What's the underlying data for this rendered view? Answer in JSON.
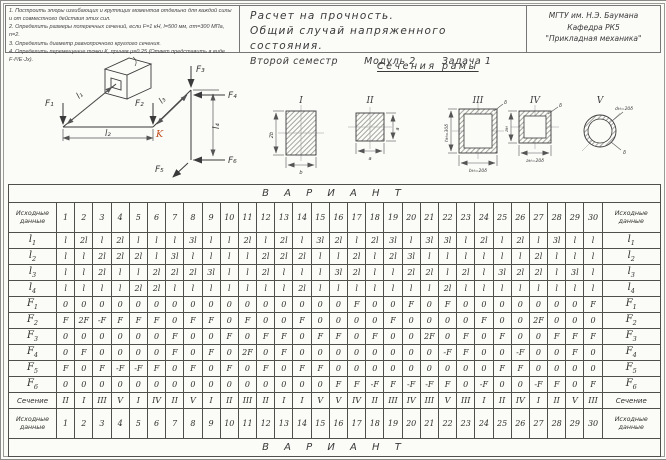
{
  "colors": {
    "paper": "#fbfbf8",
    "line": "#4f4f4d",
    "k_accent": "#c14a1a"
  },
  "header": {
    "instructions": [
      "1. Построить эпюры изгибающих и крутящих моментов отдельно для каждой силы и от совместного действия этих сил.",
      "2. Определить размеры поперечных сечений, если F=1 кН, l=500 мм, σт=300 МПа, n=2.",
      "3. Определить диаметр равнопрочного круглого сечения.",
      "4. Определить перемещение точки К, приняв μ=0.25 (Ответ представить в виде F·l³/E·Jx)."
    ],
    "title_line1": "Расчет на прочность.",
    "title_line2": "Общий случай напряженного состояния.",
    "semester": "Второй семестр",
    "module": "Модуль 2",
    "task": "Задача 1",
    "org_line1": "МГТУ им. Н.Э. Баумана",
    "org_line2": "Кафедра РК5",
    "org_line3": "\"Прикладная механика\""
  },
  "figure": {
    "sections_title": "Сечения рамы",
    "point_label": "K",
    "labels": {
      "f1": "F₁",
      "f2": "F₂",
      "f3": "F₃",
      "f4": "F₄",
      "f5": "F₅",
      "f6": "F₆",
      "l1": "l₁",
      "l2": "l₂",
      "l3": "l₃",
      "l4": "l₄"
    },
    "sections": [
      {
        "num": "I",
        "dim_side": "2b",
        "dim_bottom": "b"
      },
      {
        "num": "II",
        "dim_side": "a",
        "dim_bottom": "a"
      },
      {
        "num": "III",
        "dim_side": "hн=30δ",
        "dim_bottom": "bн=20δ",
        "wall": "δ"
      },
      {
        "num": "IV",
        "dim_side": "aн",
        "dim_bottom": "aн=20δ",
        "wall": "δ"
      },
      {
        "num": "V",
        "dim_top": "dн=20δ",
        "wall": "δ"
      }
    ]
  },
  "table": {
    "variant_header": "В А Р И А Н Т",
    "corner_label": "Исходные данные",
    "columns": [
      "1",
      "2",
      "3",
      "4",
      "5",
      "6",
      "7",
      "8",
      "9",
      "10",
      "11",
      "12",
      "13",
      "14",
      "15",
      "16",
      "17",
      "18",
      "19",
      "20",
      "21",
      "22",
      "23",
      "24",
      "25",
      "26",
      "27",
      "28",
      "29",
      "30"
    ],
    "rows": [
      {
        "label": {
          "base": "l",
          "sub": "1"
        },
        "values": [
          "l",
          "2l",
          "l",
          "2l",
          "l",
          "l",
          "l",
          "3l",
          "l",
          "l",
          "2l",
          "l",
          "2l",
          "l",
          "3l",
          "2l",
          "l",
          "2l",
          "3l",
          "l",
          "3l",
          "3l",
          "l",
          "2l",
          "l",
          "2l",
          "l",
          "3l",
          "l",
          "l"
        ]
      },
      {
        "label": {
          "base": "l",
          "sub": "2"
        },
        "values": [
          "l",
          "l",
          "2l",
          "2l",
          "2l",
          "l",
          "3l",
          "l",
          "l",
          "l",
          "l",
          "2l",
          "2l",
          "2l",
          "l",
          "l",
          "2l",
          "l",
          "2l",
          "3l",
          "l",
          "l",
          "l",
          "l",
          "l",
          "l",
          "2l",
          "l",
          "l",
          "l"
        ]
      },
      {
        "label": {
          "base": "l",
          "sub": "3"
        },
        "values": [
          "l",
          "l",
          "2l",
          "l",
          "l",
          "2l",
          "2l",
          "2l",
          "3l",
          "l",
          "l",
          "2l",
          "l",
          "l",
          "l",
          "3l",
          "2l",
          "l",
          "l",
          "2l",
          "2l",
          "l",
          "2l",
          "l",
          "3l",
          "2l",
          "2l",
          "l",
          "3l",
          "l"
        ]
      },
      {
        "label": {
          "base": "l",
          "sub": "4"
        },
        "values": [
          "l",
          "l",
          "l",
          "l",
          "2l",
          "2l",
          "l",
          "l",
          "l",
          "l",
          "l",
          "l",
          "l",
          "2l",
          "l",
          "l",
          "l",
          "l",
          "l",
          "l",
          "l",
          "2l",
          "l",
          "l",
          "l",
          "l",
          "l",
          "l",
          "l",
          "l"
        ]
      },
      {
        "label": {
          "base": "F",
          "sub": "1"
        },
        "values": [
          "0",
          "0",
          "0",
          "0",
          "0",
          "0",
          "0",
          "0",
          "0",
          "0",
          "0",
          "0",
          "0",
          "0",
          "0",
          "0",
          "F",
          "0",
          "0",
          "F",
          "0",
          "F",
          "0",
          "0",
          "0",
          "0",
          "0",
          "0",
          "0",
          "F"
        ]
      },
      {
        "label": {
          "base": "F",
          "sub": "2"
        },
        "values": [
          "F",
          "2F",
          "-F",
          "F",
          "F",
          "F",
          "0",
          "F",
          "F",
          "0",
          "F",
          "0",
          "0",
          "F",
          "0",
          "0",
          "0",
          "0",
          "F",
          "0",
          "0",
          "0",
          "0",
          "F",
          "0",
          "0",
          "2F",
          "0",
          "0",
          "0"
        ]
      },
      {
        "label": {
          "base": "F",
          "sub": "3"
        },
        "values": [
          "0",
          "0",
          "0",
          "0",
          "0",
          "0",
          "F",
          "0",
          "0",
          "F",
          "0",
          "F",
          "F",
          "0",
          "F",
          "F",
          "0",
          "F",
          "0",
          "0",
          "2F",
          "0",
          "F",
          "0",
          "F",
          "0",
          "0",
          "F",
          "F",
          "F"
        ]
      },
      {
        "label": {
          "base": "F",
          "sub": "4"
        },
        "values": [
          "0",
          "F",
          "0",
          "0",
          "0",
          "0",
          "F",
          "0",
          "F",
          "0",
          "2F",
          "0",
          "F",
          "0",
          "0",
          "0",
          "0",
          "0",
          "0",
          "0",
          "0",
          "-F",
          "F",
          "0",
          "0",
          "-F",
          "0",
          "0",
          "F",
          "0"
        ]
      },
      {
        "label": {
          "base": "F",
          "sub": "5"
        },
        "values": [
          "F",
          "0",
          "F",
          "-F",
          "-F",
          "F",
          "0",
          "F",
          "0",
          "F",
          "0",
          "F",
          "0",
          "F",
          "F",
          "0",
          "0",
          "0",
          "0",
          "0",
          "0",
          "0",
          "0",
          "0",
          "F",
          "F",
          "0",
          "0",
          "0",
          "0"
        ]
      },
      {
        "label": {
          "base": "F",
          "sub": "6"
        },
        "values": [
          "0",
          "0",
          "0",
          "0",
          "0",
          "0",
          "0",
          "0",
          "0",
          "0",
          "0",
          "0",
          "0",
          "0",
          "0",
          "F",
          "F",
          "-F",
          "F",
          "-F",
          "-F",
          "F",
          "0",
          "-F",
          "0",
          "0",
          "-F",
          "F",
          "0",
          "F"
        ]
      },
      {
        "label": {
          "text": "Сечение"
        },
        "values": [
          "II",
          "I",
          "III",
          "V",
          "I",
          "IV",
          "II",
          "V",
          "I",
          "II",
          "III",
          "II",
          "I",
          "I",
          "V",
          "V",
          "IV",
          "II",
          "III",
          "IV",
          "III",
          "V",
          "III",
          "I",
          "II",
          "IV",
          "I",
          "II",
          "V",
          "III"
        ]
      }
    ]
  }
}
